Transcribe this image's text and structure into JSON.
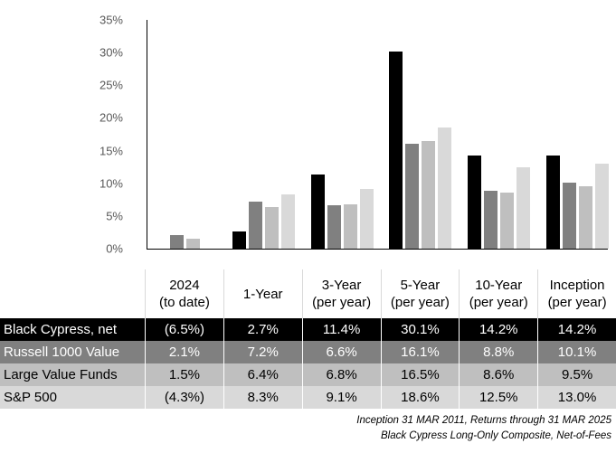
{
  "chart_data": {
    "type": "bar",
    "title": "",
    "xlabel": "",
    "ylabel": "",
    "categories": [
      "2024 (to date)",
      "1-Year",
      "3-Year (per year)",
      "5-Year (per year)",
      "10-Year (per year)",
      "Inception (per year)"
    ],
    "series": [
      {
        "name": "Black Cypress, net",
        "color": "#000000",
        "values": [
          -6.5,
          2.7,
          11.4,
          30.1,
          14.2,
          14.2
        ]
      },
      {
        "name": "Russell 1000 Value",
        "color": "#808080",
        "values": [
          2.1,
          7.2,
          6.6,
          16.1,
          8.8,
          10.1
        ]
      },
      {
        "name": "Large Value Funds",
        "color": "#bfbfbf",
        "values": [
          1.5,
          6.4,
          6.8,
          16.5,
          8.6,
          9.5
        ]
      },
      {
        "name": "S&P 500",
        "color": "#d9d9d9",
        "values": [
          -4.3,
          8.3,
          9.1,
          18.6,
          12.5,
          13.0
        ]
      }
    ],
    "ylim": [
      0,
      35
    ],
    "ytick_step": 5,
    "yticks": [
      "0%",
      "5%",
      "10%",
      "15%",
      "20%",
      "25%",
      "30%",
      "35%"
    ],
    "grid": false,
    "legend_position": "none",
    "note": "Negative values are clipped at the 0% baseline and not drawn as bars"
  },
  "table": {
    "column_headers": [
      [
        "2024",
        "(to date)"
      ],
      [
        "1-Year"
      ],
      [
        "3-Year",
        "(per year)"
      ],
      [
        "5-Year",
        "(per year)"
      ],
      [
        "10-Year",
        "(per year)"
      ],
      [
        "Inception",
        "(per year)"
      ]
    ],
    "rows": [
      {
        "label": "Black Cypress, net",
        "values": [
          "(6.5%)",
          "2.7%",
          "11.4%",
          "30.1%",
          "14.2%",
          "14.2%"
        ],
        "bg": "#000000",
        "fg": "#ffffff"
      },
      {
        "label": "Russell 1000 Value",
        "values": [
          "2.1%",
          "7.2%",
          "6.6%",
          "16.1%",
          "8.8%",
          "10.1%"
        ],
        "bg": "#808080",
        "fg": "#ffffff"
      },
      {
        "label": "Large Value Funds",
        "values": [
          "1.5%",
          "6.4%",
          "6.8%",
          "16.5%",
          "8.6%",
          "9.5%"
        ],
        "bg": "#bfbfbf",
        "fg": "#000000"
      },
      {
        "label": "S&P 500",
        "values": [
          "(4.3%)",
          "8.3%",
          "9.1%",
          "18.6%",
          "12.5%",
          "13.0%"
        ],
        "bg": "#d9d9d9",
        "fg": "#000000"
      }
    ]
  },
  "footnotes": [
    "Inception 31 MAR 2011, Returns through 31 MAR 2025",
    "Black Cypress Long-Only Composite, Net-of-Fees"
  ],
  "colors": {
    "axis_text": "#595959",
    "axis_line": "#000000",
    "header_divider": "#d9d9d9",
    "cell_divider": "#ffffff"
  }
}
